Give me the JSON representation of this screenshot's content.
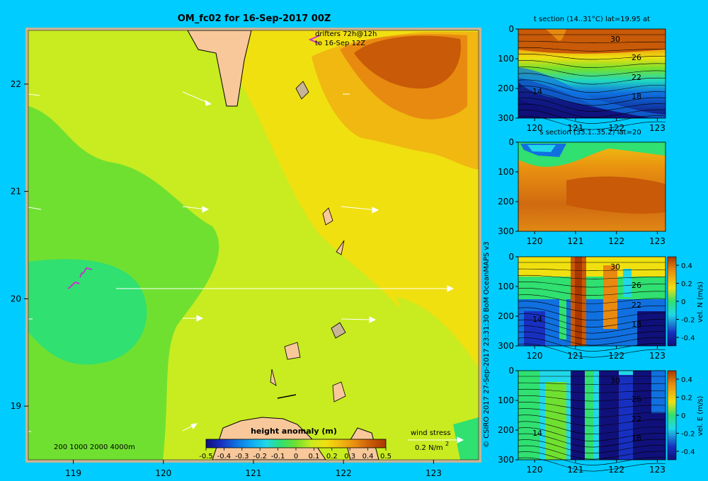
{
  "colors": {
    "background": "#00ccff",
    "land": "#f8c89a",
    "frame": "#c8b496",
    "vectors": "#ffffff",
    "drifters": "#cc33cc"
  },
  "main_map": {
    "title": "OM_fc02 for 16-Sep-2017 00Z",
    "drifter_note_line1": "drifters 72h@12h",
    "drifter_note_line2": "to 16-Sep 12Z",
    "depth_legend": "200  1000  2000  4000m",
    "wind_stress_label": "wind stress",
    "wind_stress_scale": "0.2 N/m",
    "wind_stress_exp": "2"
  },
  "colorbar": {
    "title": "height anomaly (m)",
    "ticks": [
      "-0.5",
      "-0.4",
      "-0.3",
      "-0.2",
      "-0.1",
      "0",
      "0.1",
      "0.2",
      "0.3",
      "0.4",
      "0.5"
    ],
    "colors": [
      "#10107a",
      "#1830c0",
      "#1070e0",
      "#10a8f0",
      "#20d8e8",
      "#30e070",
      "#70e030",
      "#c8ec20",
      "#f0e010",
      "#f0b810",
      "#e88a10",
      "#c85a08",
      "#a83800"
    ]
  },
  "side_panels": [
    {
      "title": "t section (14..31°C) lat=19.95 at",
      "contour_labels": [
        "30",
        "26",
        "22",
        "18",
        "14"
      ],
      "cb_label": "",
      "cb_ticks": []
    },
    {
      "title": "s section (33.1..35.2) lat=20",
      "contour_labels": [],
      "cb_label": "",
      "cb_ticks": []
    },
    {
      "title": "",
      "contour_labels": [
        "30",
        "26",
        "22",
        "18",
        "14"
      ],
      "cb_label": "vel. N (m/s)",
      "cb_ticks": [
        "0.4",
        "0.2",
        "0",
        "-0.2",
        "-0.4"
      ]
    },
    {
      "title": "",
      "contour_labels": [
        "30",
        "26",
        "22",
        "18",
        "14"
      ],
      "cb_label": "vel. E (m/s)",
      "cb_ticks": [
        "0.4",
        "0.2",
        "0",
        "-0.2",
        "-0.4"
      ]
    }
  ],
  "credit": "© CSIRO 2017   27-Sep-2017 23:31:30 BoM OceanMAPS v3",
  "chart_data": [
    {
      "type": "heatmap",
      "title": "OM_fc02 for 16-Sep-2017 00Z",
      "variable": "height anomaly (m)",
      "x_ticks": [
        119,
        120,
        121,
        122,
        123
      ],
      "y_ticks": [
        19,
        20,
        21,
        22
      ],
      "xlim": [
        118.5,
        123.5
      ],
      "ylim": [
        18.5,
        22.5
      ],
      "colorbar_range": [
        -0.5,
        0.5
      ],
      "annotations": [
        "drifters 72h@12h to 16-Sep 12Z",
        "wind stress 0.2 N/m2"
      ]
    },
    {
      "type": "heatmap",
      "title": "t section (14..31°C) lat=19.95 at",
      "x_ticks": [
        120,
        121,
        122,
        123
      ],
      "y_ticks": [
        0,
        100,
        200,
        300
      ],
      "ylim": [
        300,
        0
      ],
      "contour_labels": [
        30,
        26,
        22,
        18,
        14
      ]
    },
    {
      "type": "heatmap",
      "title": "s section (33.1..35.2) lat=20",
      "x_ticks": [
        120,
        121,
        122,
        123
      ],
      "y_ticks": [
        0,
        100,
        200,
        300
      ],
      "ylim": [
        300,
        0
      ]
    },
    {
      "type": "heatmap",
      "variable": "vel. N (m/s)",
      "x_ticks": [
        120,
        121,
        122,
        123
      ],
      "y_ticks": [
        0,
        100,
        200,
        300
      ],
      "ylim": [
        300,
        0
      ],
      "colorbar_range": [
        -0.4,
        0.4
      ]
    },
    {
      "type": "heatmap",
      "variable": "vel. E (m/s)",
      "x_ticks": [
        120,
        121,
        122,
        123
      ],
      "y_ticks": [
        0,
        100,
        200,
        300
      ],
      "ylim": [
        300,
        0
      ],
      "colorbar_range": [
        -0.4,
        0.4
      ]
    }
  ]
}
